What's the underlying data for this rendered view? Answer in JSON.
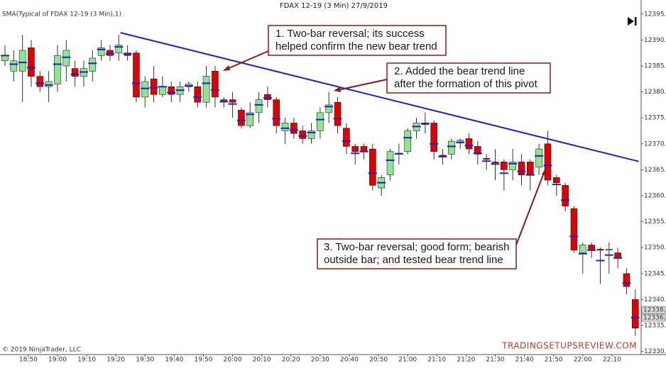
{
  "chart_data": {
    "type": "candlestick",
    "title": "FDAX 12-19 (3 Min)  27/9/2019",
    "indicator_label": "SMA(Typical of FDAX 12-19 (3 Min),1)",
    "copyright": "© 2019 NinjaTrader, LLC",
    "watermark": "TRADINGSETUPSREVIEW.COM",
    "up_color": "#8fe68f",
    "down_color": "#e00000",
    "sma_color": "#1f1fd6",
    "grid": false,
    "xlim": [
      1120.3,
      1340
    ],
    "ylim": [
      12329.4,
      12397.7
    ],
    "xticks": [
      {
        "value": 1130,
        "label": "18:50"
      },
      {
        "value": 1140,
        "label": "19:00"
      },
      {
        "value": 1150,
        "label": "19:10"
      },
      {
        "value": 1160,
        "label": "19:20"
      },
      {
        "value": 1170,
        "label": "19:30"
      },
      {
        "value": 1180,
        "label": "19:40"
      },
      {
        "value": 1190,
        "label": "19:50"
      },
      {
        "value": 1200,
        "label": "20:00"
      },
      {
        "value": 1210,
        "label": "20:10"
      },
      {
        "value": 1220,
        "label": "20:20"
      },
      {
        "value": 1230,
        "label": "20:30"
      },
      {
        "value": 1240,
        "label": "20:40"
      },
      {
        "value": 1250,
        "label": "20:50"
      },
      {
        "value": 1260,
        "label": "21:00"
      },
      {
        "value": 1270,
        "label": "21:10"
      },
      {
        "value": 1280,
        "label": "21:20"
      },
      {
        "value": 1290,
        "label": "21:30"
      },
      {
        "value": 1300,
        "label": "21:40"
      },
      {
        "value": 1310,
        "label": "21:50"
      },
      {
        "value": 1320,
        "label": "22:00"
      },
      {
        "value": 1330,
        "label": "22:10"
      }
    ],
    "yticks": [
      {
        "value": 12330,
        "label": "12330.0"
      },
      {
        "value": 12335,
        "label": "12335.0"
      },
      {
        "value": 12340,
        "label": "12340.0"
      },
      {
        "value": 12345,
        "label": "12345.0"
      },
      {
        "value": 12350,
        "label": "12350.0"
      },
      {
        "value": 12355,
        "label": "12355.0"
      },
      {
        "value": 12360,
        "label": "12360.0"
      },
      {
        "value": 12365,
        "label": "12365.0"
      },
      {
        "value": 12370,
        "label": "12370.0"
      },
      {
        "value": 12375,
        "label": "12375.0"
      },
      {
        "value": 12380,
        "label": "12380.0"
      },
      {
        "value": 12385,
        "label": "12385.0"
      },
      {
        "value": 12390,
        "label": "12390.0"
      },
      {
        "value": 12395,
        "label": "12395.0"
      }
    ],
    "price_markers": [
      {
        "value": 12338.0,
        "label": "12338.0"
      },
      {
        "value": 12336.5,
        "label": "12336.5"
      }
    ],
    "x": [
      1122,
      1125,
      1128,
      1131,
      1134,
      1137,
      1140,
      1143,
      1146,
      1149,
      1152,
      1155,
      1158,
      1161,
      1164,
      1167,
      1170,
      1173,
      1176,
      1179,
      1182,
      1185,
      1188,
      1191,
      1194,
      1197,
      1200,
      1203,
      1206,
      1209,
      1212,
      1215,
      1218,
      1221,
      1224,
      1227,
      1230,
      1233,
      1236,
      1239,
      1242,
      1245,
      1248,
      1251,
      1254,
      1257,
      1260,
      1263,
      1266,
      1269,
      1272,
      1275,
      1278,
      1281,
      1284,
      1287,
      1290,
      1293,
      1296,
      1299,
      1302,
      1305,
      1308,
      1311,
      1314,
      1317,
      1320,
      1323,
      1326,
      1329,
      1332,
      1335,
      1338
    ],
    "open": [
      12386,
      12384,
      12384,
      12388.5,
      12383,
      12381,
      12381.5,
      12385,
      12384.5,
      12383,
      12384,
      12387,
      12388,
      12387.5,
      12387.5,
      12387.5,
      12379,
      12382.5,
      12379.5,
      12381,
      12379.5,
      12381,
      12381,
      12378,
      12384,
      12378.5,
      12378.5,
      12376.5,
      12373.5,
      12376,
      12379.5,
      12378.5,
      12372.5,
      12374,
      12372.5,
      12371,
      12372.5,
      12376,
      12378,
      12373,
      12369.5,
      12369.5,
      12369,
      12361.5,
      12364,
      12368,
      12368.5,
      12372.5,
      12374,
      12374,
      12367.8,
      12368,
      12370.5,
      12371,
      12369.5,
      12367.2,
      12366.5,
      12366.5,
      12365,
      12366.5,
      12366.5,
      12365.5,
      12370,
      12363.5,
      12362,
      12357.5,
      12349,
      12350.5,
      12349.7,
      12349.5,
      12349,
      12345,
      12340
    ],
    "high": [
      12389,
      12388,
      12391,
      12390,
      12384,
      12384,
      12389,
      12390,
      12386,
      12386,
      12388,
      12390,
      12389,
      12391,
      12389,
      12388,
      12383,
      12385,
      12383,
      12382,
      12382,
      12382,
      12382,
      12385,
      12385,
      12379,
      12380,
      12377,
      12378,
      12380,
      12381,
      12379,
      12375,
      12375,
      12373.5,
      12374,
      12377,
      12380,
      12379,
      12374,
      12370,
      12370,
      12370,
      12364,
      12369,
      12370,
      12373,
      12375,
      12376,
      12374.5,
      12369,
      12371,
      12371,
      12372,
      12370.5,
      12368,
      12369,
      12367,
      12369,
      12368,
      12367,
      12370,
      12372.5,
      12364,
      12362.5,
      12358,
      12351,
      12351,
      12350,
      12351,
      12350,
      12346,
      12342
    ],
    "low": [
      12385,
      12382,
      12378,
      12381,
      12380,
      12378,
      12380,
      12382,
      12381,
      12381,
      12382,
      12386,
      12386,
      12386,
      12386,
      12378,
      12377,
      12378,
      12379,
      12378,
      12378,
      12380,
      12377,
      12377,
      12377,
      12377,
      12375,
      12373,
      12373,
      12374,
      12377,
      12372,
      12370,
      12371,
      12370,
      12370,
      12371,
      12374,
      12372,
      12368,
      12366,
      12367,
      12361,
      12360,
      12363,
      12366,
      12368,
      12371,
      12372,
      12367,
      12366,
      12367,
      12369,
      12368,
      12366,
      12365,
      12363,
      12361,
      12363,
      12362,
      12361,
      12364,
      12362,
      12360,
      12357,
      12349,
      12345,
      12348,
      12343,
      12345,
      12346,
      12341,
      12333
    ],
    "close": [
      12387,
      12386,
      12388,
      12383,
      12381,
      12382,
      12387,
      12388,
      12383,
      12384.5,
      12386.5,
      12388.5,
      12387,
      12389,
      12387,
      12379,
      12382,
      12379.5,
      12381,
      12379.5,
      12381,
      12381.5,
      12378,
      12383,
      12379,
      12378.3,
      12378,
      12373.5,
      12376,
      12378.5,
      12378.5,
      12373.5,
      12374,
      12372,
      12371,
      12372.5,
      12376,
      12377.5,
      12373.5,
      12369.5,
      12368.5,
      12368.5,
      12362,
      12363.5,
      12368.5,
      12368.2,
      12372.5,
      12374,
      12373.7,
      12368.5,
      12367.6,
      12370.5,
      12370.7,
      12369,
      12368,
      12367,
      12366.3,
      12365,
      12366.5,
      12364,
      12364,
      12369,
      12363,
      12362.5,
      12358,
      12349.5,
      12350.5,
      12349.5,
      12349.5,
      12349.7,
      12348,
      12342.5,
      12334.5
    ],
    "trend_line": {
      "x": [
        1161.6,
        1339.2
      ],
      "y": [
        12391.4,
        12366.6
      ],
      "color": "#1f1fd6"
    },
    "annotations": [
      {
        "lines": [
          "1. Two-bar reversal; its success",
          "helped confirm the new bear trend"
        ]
      },
      {
        "lines": [
          "2. Added the bear trend line",
          "after the formation of this pivot"
        ]
      },
      {
        "lines": [
          "3. Two-bar reversal; good form; bearish",
          "outside bar; and tested bear trend line"
        ]
      }
    ]
  }
}
